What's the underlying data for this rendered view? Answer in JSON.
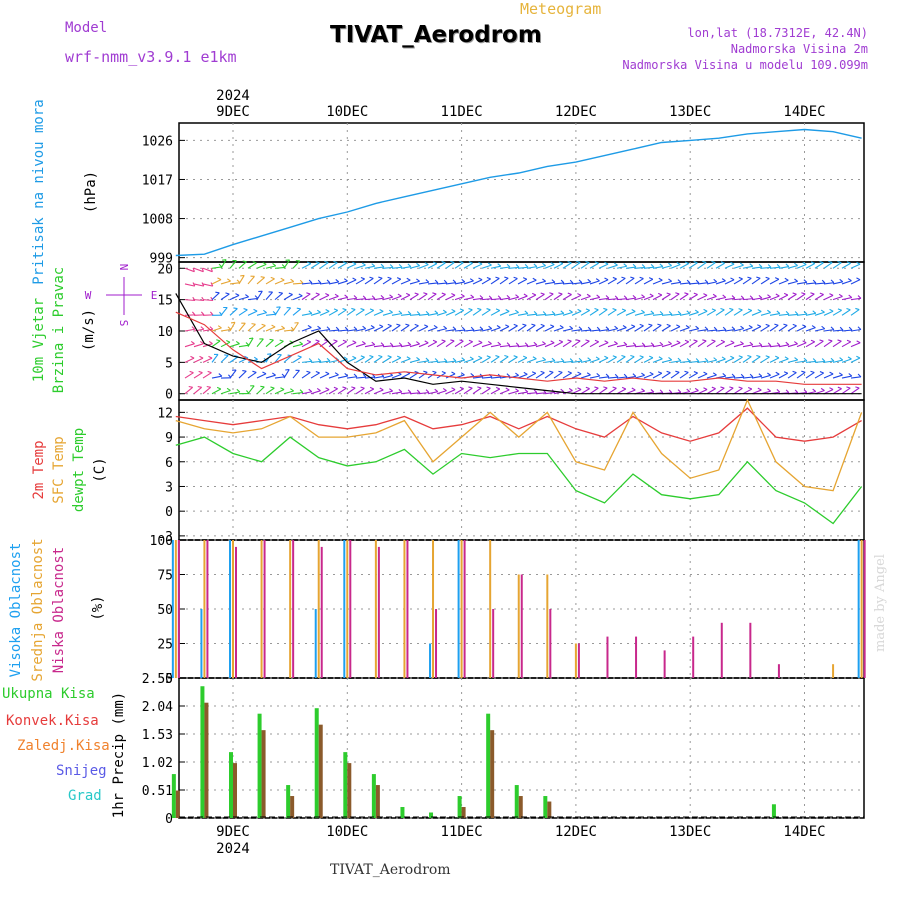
{
  "header": {
    "model_label": "Model",
    "model_name": "wrf-nmm_v3.9.1 e1km",
    "title": "TIVAT_Aerodrom",
    "meteogram": "Meteogram",
    "lonlat": "lon,lat (18.7312E, 42.4N)",
    "altitude": "Nadmorska Visina 2m",
    "model_altitude": "Nadmorska Visina u modelu 109.099m",
    "credit": "made by Angel",
    "footer": "TIVAT_Aerodrom"
  },
  "colors": {
    "pressure": "#1e9be6",
    "temp2m": "#e63c3c",
    "sfc": "#e6a532",
    "dewpt": "#2dcc2d",
    "high_cloud": "#1ea0f0",
    "mid_cloud": "#e6a532",
    "low_cloud": "#c8288c",
    "total": "#2dcc2d",
    "conv": "#e63c3c",
    "frozen": "#f0822d",
    "snow": "#5a5ae6",
    "grad": "#28c8c8",
    "wind_blue": "#1e46e6",
    "wind_cyan": "#1eaae6",
    "wind_violet": "#a01ecc"
  },
  "chart_data": [
    {
      "type": "line",
      "panel": "pressure",
      "ylabel": [
        "Pritisak na nivou mora",
        "(hPa)"
      ],
      "yticks": [
        999,
        1008,
        1017,
        1026
      ],
      "ylim": [
        998,
        1030
      ],
      "x": [
        "2024-12-08T12",
        "2024-12-08T18",
        "2024-12-09T00",
        "2024-12-09T06",
        "2024-12-09T12",
        "2024-12-09T18",
        "2024-12-10T00",
        "2024-12-10T06",
        "2024-12-10T12",
        "2024-12-10T18",
        "2024-12-11T00",
        "2024-12-11T06",
        "2024-12-11T12",
        "2024-12-11T18",
        "2024-12-12T00",
        "2024-12-12T06",
        "2024-12-12T12",
        "2024-12-12T18",
        "2024-12-13T00",
        "2024-12-13T06",
        "2024-12-13T12",
        "2024-12-13T18",
        "2024-12-14T00",
        "2024-12-14T06",
        "2024-12-14T12"
      ],
      "series": [
        {
          "values": [
            999.5,
            999.8,
            1002,
            1004,
            1006,
            1008,
            1009.5,
            1011.5,
            1013,
            1014.5,
            1016,
            1017.5,
            1018.5,
            1020,
            1021,
            1022.5,
            1024,
            1025.5,
            1026,
            1026.5,
            1027.5,
            1028,
            1028.5,
            1028,
            1026.5
          ]
        }
      ]
    },
    {
      "type": "line",
      "panel": "wind",
      "ylabel": [
        "10m Vjetar",
        "Brzina i Pravac",
        "(m/s)"
      ],
      "compass": [
        "N",
        "E",
        "S",
        "W"
      ],
      "yticks": [
        0,
        5,
        10,
        15,
        20
      ],
      "ylim": [
        -1,
        21
      ],
      "x": [
        "2024-12-08T12",
        "2024-12-08T18",
        "2024-12-09T00",
        "2024-12-09T06",
        "2024-12-09T12",
        "2024-12-09T18",
        "2024-12-10T00",
        "2024-12-10T06",
        "2024-12-10T12",
        "2024-12-10T18",
        "2024-12-11T00",
        "2024-12-11T06",
        "2024-12-11T12",
        "2024-12-11T18",
        "2024-12-12T00",
        "2024-12-12T06",
        "2024-12-12T12",
        "2024-12-12T18",
        "2024-12-13T00",
        "2024-12-13T06",
        "2024-12-13T12",
        "2024-12-13T18",
        "2024-12-14T00",
        "2024-12-14T06",
        "2024-12-14T12"
      ],
      "series": [
        {
          "values": [
            16,
            8,
            6,
            5,
            8,
            10,
            5,
            2,
            2.5,
            1.5,
            2,
            1.5,
            1,
            0.5,
            0,
            0,
            0,
            0,
            0,
            0,
            0,
            0,
            0,
            0,
            0
          ]
        },
        {
          "values": [
            13,
            11,
            7,
            4,
            6,
            8,
            4,
            3,
            3.5,
            3,
            2.5,
            3,
            2.5,
            2,
            2.5,
            2,
            2.5,
            2,
            2,
            2.5,
            2,
            2,
            1.5,
            1.5,
            1.5
          ]
        }
      ]
    },
    {
      "type": "line",
      "panel": "temperature",
      "ylabel": [
        "2m Temp",
        "SFC Temp",
        "dewpt Temp",
        "(C)"
      ],
      "yticks": [
        -3,
        0,
        3,
        6,
        9,
        12
      ],
      "ylim": [
        -3.5,
        13.5
      ],
      "x": [
        "2024-12-08T12",
        "2024-12-08T18",
        "2024-12-09T00",
        "2024-12-09T06",
        "2024-12-09T12",
        "2024-12-09T18",
        "2024-12-10T00",
        "2024-12-10T06",
        "2024-12-10T12",
        "2024-12-10T18",
        "2024-12-11T00",
        "2024-12-11T06",
        "2024-12-11T12",
        "2024-12-11T18",
        "2024-12-12T00",
        "2024-12-12T06",
        "2024-12-12T12",
        "2024-12-12T18",
        "2024-12-13T00",
        "2024-12-13T06",
        "2024-12-13T12",
        "2024-12-13T18",
        "2024-12-14T00",
        "2024-12-14T06",
        "2024-12-14T12"
      ],
      "series": [
        {
          "name": "2m Temp",
          "values": [
            11.5,
            11,
            10.5,
            11,
            11.5,
            10.5,
            10,
            10.5,
            11.5,
            10,
            10.5,
            11.5,
            10,
            11.5,
            10,
            9,
            11.5,
            9.5,
            8.5,
            9.5,
            12.5,
            9,
            8.5,
            9,
            11
          ]
        },
        {
          "name": "SFC Temp",
          "values": [
            11,
            10,
            9.5,
            10,
            11.5,
            9,
            9,
            9.5,
            11,
            6,
            9,
            12,
            9,
            12,
            6,
            5,
            12,
            7,
            4,
            5,
            13.5,
            6,
            3,
            2.5,
            12
          ]
        },
        {
          "name": "dewpt Temp",
          "values": [
            8,
            9,
            7,
            6,
            9,
            6.5,
            5.5,
            6,
            7.5,
            4.5,
            7,
            6.5,
            7,
            7,
            2.5,
            1,
            4.5,
            2,
            1.5,
            2,
            6,
            2.5,
            1,
            -1.5,
            3
          ]
        }
      ]
    },
    {
      "type": "bar",
      "panel": "cloud",
      "ylabel": [
        "Visoka Oblacnost",
        "Srednja Oblacnost",
        "Niska Oblacnost",
        "(%)"
      ],
      "yticks": [
        0,
        25,
        50,
        75,
        100
      ],
      "ylim": [
        0,
        100
      ],
      "x": [
        "2024-12-08T12",
        "2024-12-08T18",
        "2024-12-09T00",
        "2024-12-09T06",
        "2024-12-09T12",
        "2024-12-09T18",
        "2024-12-10T00",
        "2024-12-10T06",
        "2024-12-10T12",
        "2024-12-10T18",
        "2024-12-11T00",
        "2024-12-11T06",
        "2024-12-11T12",
        "2024-12-11T18",
        "2024-12-12T00",
        "2024-12-12T06",
        "2024-12-12T12",
        "2024-12-12T18",
        "2024-12-13T00",
        "2024-12-13T06",
        "2024-12-13T12",
        "2024-12-13T18",
        "2024-12-14T00",
        "2024-12-14T06",
        "2024-12-14T12"
      ],
      "series": [
        {
          "name": "Visoka Oblacnost",
          "values": [
            100,
            50,
            100,
            0,
            0,
            50,
            100,
            0,
            0,
            25,
            100,
            0,
            0,
            0,
            0,
            0,
            0,
            0,
            0,
            0,
            0,
            0,
            0,
            0,
            100
          ]
        },
        {
          "name": "Srednja Oblacnost",
          "values": [
            100,
            100,
            100,
            100,
            100,
            100,
            100,
            100,
            100,
            100,
            100,
            100,
            75,
            75,
            25,
            0,
            0,
            0,
            0,
            0,
            0,
            0,
            0,
            10,
            100
          ]
        },
        {
          "name": "Niska Oblacnost",
          "values": [
            100,
            100,
            95,
            100,
            100,
            95,
            100,
            95,
            100,
            50,
            100,
            50,
            75,
            50,
            25,
            30,
            30,
            20,
            30,
            40,
            40,
            10,
            0,
            0,
            100
          ]
        }
      ]
    },
    {
      "type": "bar",
      "panel": "precip",
      "ylabel": [
        "1hr Precip (mm)"
      ],
      "legend": [
        "Ukupna Kisa",
        "Konvek.Kisa",
        "Zaledj.Kisa",
        "Snijeg",
        "Grad"
      ],
      "yticks": [
        0,
        0.51,
        1.02,
        1.53,
        2.04,
        2.55
      ],
      "ylim": [
        0,
        2.55
      ],
      "x": [
        "2024-12-08T12",
        "2024-12-08T18",
        "2024-12-09T00",
        "2024-12-09T06",
        "2024-12-09T12",
        "2024-12-09T18",
        "2024-12-10T00",
        "2024-12-10T06",
        "2024-12-10T12",
        "2024-12-10T18",
        "2024-12-11T00",
        "2024-12-11T06",
        "2024-12-11T12",
        "2024-12-11T18",
        "2024-12-12T00",
        "2024-12-12T06",
        "2024-12-12T12",
        "2024-12-12T18",
        "2024-12-13T00",
        "2024-12-13T06",
        "2024-12-13T12",
        "2024-12-13T18",
        "2024-12-14T00",
        "2024-12-14T06",
        "2024-12-14T12"
      ],
      "series": [
        {
          "name": "Ukupna Kisa",
          "values": [
            0.8,
            2.4,
            1.2,
            1.9,
            0.6,
            2.0,
            1.2,
            0.8,
            0.2,
            0.1,
            0.4,
            1.9,
            0.6,
            0.4,
            0.0,
            0.0,
            0.0,
            0.0,
            0.0,
            0.0,
            0.0,
            0.25,
            0.0,
            0.0,
            0.0
          ]
        },
        {
          "name": "Konvek.Kisa",
          "values": [
            0.5,
            2.1,
            1.0,
            1.6,
            0.4,
            1.7,
            1.0,
            0.6,
            0.0,
            0.0,
            0.2,
            1.6,
            0.4,
            0.3,
            0.0,
            0.0,
            0.0,
            0.0,
            0.0,
            0.0,
            0.0,
            0.0,
            0.0,
            0.0,
            0.0
          ]
        }
      ]
    }
  ],
  "xaxis": {
    "year": "2024",
    "day_labels": [
      "9DEC",
      "10DEC",
      "11DEC",
      "12DEC",
      "13DEC",
      "14DEC"
    ]
  }
}
